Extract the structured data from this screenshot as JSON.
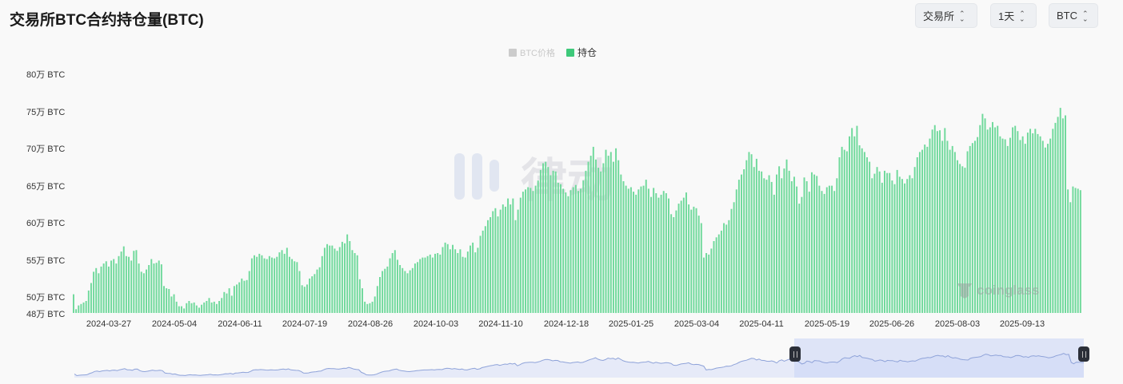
{
  "header": {
    "title": "交易所BTC合约持仓量(BTC)"
  },
  "controls": {
    "exchange_select": "交易所",
    "interval_select": "1天",
    "coin_select": "BTC"
  },
  "legend": {
    "items": [
      {
        "label": "BTC价格",
        "color": "#cccccc",
        "active": false
      },
      {
        "label": "持仓",
        "color": "#3ec97a",
        "active": true
      }
    ]
  },
  "watermarks": {
    "center": "律动",
    "corner": "coinglass"
  },
  "chart_data": {
    "type": "bar",
    "title": "交易所BTC合约持仓量(BTC)",
    "xlabel": "",
    "ylabel": "持仓 (万 BTC)",
    "ylim": [
      48,
      80
    ],
    "y_ticks": [
      "80万 BTC",
      "75万 BTC",
      "70万 BTC",
      "65万 BTC",
      "60万 BTC",
      "55万 BTC",
      "50万 BTC",
      "48万 BTC"
    ],
    "y_tick_values": [
      80,
      75,
      70,
      65,
      60,
      55,
      50,
      48
    ],
    "x_ticks": [
      "2024-03-27",
      "2024-05-04",
      "2024-06-11",
      "2024-07-19",
      "2024-08-26",
      "2024-10-03",
      "2024-11-10",
      "2024-12-18",
      "2025-01-25",
      "2025-03-04",
      "2025-04-11",
      "2025-05-19",
      "2025-06-26",
      "2025-08-03",
      "2025-09-13"
    ],
    "grid": false,
    "legend_position": "top-center",
    "bar_color": "#6fd99b",
    "series": [
      {
        "name": "持仓",
        "unit": "万 BTC",
        "values": [
          50.5,
          48.5,
          49.0,
          49.2,
          49.4,
          49.6,
          51.0,
          52.0,
          53.5,
          54.0,
          53.3,
          54.2,
          54.6,
          54.9,
          54.2,
          55.0,
          55.2,
          54.6,
          55.6,
          56.2,
          56.9,
          55.6,
          55.5,
          55.0,
          56.3,
          56.4,
          54.6,
          53.5,
          53.3,
          53.8,
          54.4,
          55.2,
          54.6,
          54.7,
          55.0,
          54.5,
          51.6,
          51.3,
          51.2,
          50.2,
          50.5,
          49.5,
          48.9,
          48.9,
          48.6,
          49.3,
          49.6,
          49.3,
          49.4,
          49.0,
          48.7,
          49.1,
          49.4,
          49.6,
          50.0,
          49.4,
          49.5,
          49.2,
          49.6,
          50.0,
          50.8,
          50.6,
          51.3,
          50.3,
          51.6,
          51.8,
          52.1,
          52.6,
          52.3,
          52.4,
          53.6,
          55.3,
          55.7,
          55.5,
          55.9,
          55.7,
          55.3,
          55.2,
          55.6,
          55.4,
          55.3,
          55.5,
          56.1,
          56.4,
          55.9,
          56.7,
          55.5,
          55.2,
          54.9,
          54.8,
          53.6,
          51.7,
          51.5,
          51.8,
          52.6,
          52.9,
          53.2,
          53.8,
          54.1,
          55.6,
          56.7,
          57.2,
          57.0,
          57.0,
          56.6,
          56.3,
          56.8,
          57.5,
          57.3,
          58.5,
          57.6,
          56.4,
          56.0,
          55.7,
          52.5,
          51.3,
          49.5,
          49.2,
          49.3,
          49.5,
          50.2,
          51.6,
          52.8,
          53.6,
          53.9,
          54.2,
          55.3,
          56.0,
          56.4,
          55.1,
          54.4,
          54.0,
          53.6,
          53.3,
          53.7,
          54.0,
          54.6,
          54.8,
          55.2,
          55.4,
          55.4,
          55.6,
          55.8,
          55.4,
          55.9,
          56.0,
          55.8,
          56.8,
          57.4,
          57.2,
          56.5,
          57.1,
          56.5,
          56.0,
          56.5,
          55.5,
          55.4,
          56.2,
          57.0,
          57.4,
          56.1,
          56.7,
          58.3,
          59.0,
          59.6,
          60.4,
          60.8,
          61.6,
          62.0,
          60.9,
          61.8,
          62.5,
          62.2,
          63.3,
          62.5,
          63.3,
          60.4,
          61.8,
          63.4,
          64.2,
          64.5,
          64.8,
          64.7,
          64.3,
          65.0,
          65.7,
          67.1,
          68.0,
          68.2,
          67.5,
          66.4,
          67.0,
          66.9,
          65.4,
          65.2,
          64.6,
          64.1,
          63.6,
          64.4,
          64.8,
          65.1,
          64.3,
          64.6,
          65.7,
          67.0,
          68.2,
          69.0,
          70.2,
          68.5,
          67.4,
          66.9,
          68.0,
          69.8,
          69.0,
          69.5,
          68.2,
          70.0,
          68.4,
          66.5,
          65.6,
          65.0,
          64.6,
          64.8,
          64.2,
          63.8,
          64.5,
          64.9,
          65.0,
          65.8,
          64.6,
          63.5,
          64.7,
          64.0,
          63.4,
          63.8,
          64.3,
          64.0,
          63.3,
          61.2,
          60.8,
          61.7,
          62.6,
          63.0,
          63.4,
          64.1,
          62.5,
          61.8,
          62.2,
          62.0,
          61.0,
          60.0,
          55.4,
          56.0,
          55.8,
          56.6,
          57.6,
          58.1,
          58.5,
          59.0,
          60.0,
          59.8,
          60.4,
          61.9,
          62.8,
          64.5,
          65.8,
          66.5,
          67.2,
          68.4,
          69.5,
          69.2,
          67.5,
          68.6,
          67.0,
          66.9,
          66.0,
          65.8,
          66.4,
          65.5,
          63.8,
          66.5,
          67.6,
          66.0,
          67.3,
          68.5,
          67.0,
          65.6,
          66.2,
          64.9,
          62.6,
          63.5,
          66.1,
          65.6,
          64.2,
          66.8,
          66.5,
          66.3,
          65.0,
          64.3,
          63.9,
          64.8,
          65.0,
          65.0,
          64.3,
          66.0,
          68.8,
          70.2,
          69.8,
          69.6,
          71.6,
          72.7,
          71.6,
          73.0,
          70.4,
          70.0,
          69.5,
          68.8,
          68.2,
          66.0,
          66.6,
          67.5,
          66.9,
          65.4,
          67.0,
          66.7,
          66.7,
          65.7,
          65.2,
          67.1,
          66.2,
          65.9,
          65.3,
          65.9,
          66.4,
          66.0,
          67.5,
          68.8,
          69.5,
          69.8,
          70.5,
          70.2,
          71.3,
          72.5,
          73.1,
          72.3,
          72.4,
          71.0,
          72.7,
          71.0,
          69.8,
          70.3,
          69.5,
          68.4,
          67.9,
          67.6,
          67.4,
          69.6,
          70.3,
          70.7,
          71.0,
          71.5,
          73.1,
          74.6,
          74.0,
          72.5,
          72.8,
          73.5,
          72.8,
          73.0,
          71.6,
          71.3,
          71.2,
          70.3,
          71.4,
          72.8,
          73.0,
          72.3,
          71.1,
          71.6,
          70.6,
          72.1,
          72.6,
          72.0,
          72.6,
          71.9,
          71.6,
          71.0,
          70.1,
          70.6,
          71.3,
          72.6,
          73.4,
          74.2,
          75.4,
          74.0,
          74.4,
          64.5,
          62.8,
          64.9,
          64.7,
          64.6,
          64.4
        ]
      }
    ],
    "navigator": {
      "type": "area",
      "selected_range_start_fraction": 0.717,
      "selected_range_end_fraction": 1.0
    }
  }
}
